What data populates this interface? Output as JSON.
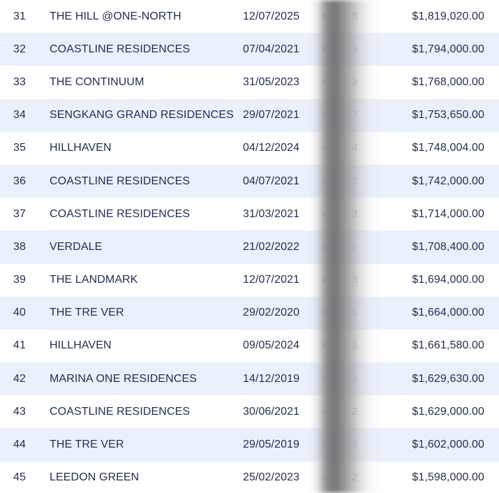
{
  "rows": [
    {
      "rank": "31",
      "name": "THE HILL @ONE-NORTH",
      "date": "12/07/2025",
      "hash": "#",
      "digit": "3",
      "price": "$1,819,020.00"
    },
    {
      "rank": "32",
      "name": "COASTLINE RESIDENCES",
      "date": "07/04/2021",
      "hash": "#",
      "digit": "3",
      "price": "$1,794,000.00"
    },
    {
      "rank": "33",
      "name": "THE CONTINUUM",
      "date": "31/05/2023",
      "hash": "#",
      "digit": "3",
      "price": "$1,768,000.00"
    },
    {
      "rank": "34",
      "name": "SENGKANG GRAND RESIDENCES",
      "date": "29/07/2021",
      "hash": "#",
      "digit": "7",
      "price": "$1,753,650.00"
    },
    {
      "rank": "35",
      "name": "HILLHAVEN",
      "date": "04/12/2024",
      "hash": "#",
      "digit": "4",
      "price": "$1,748,004.00"
    },
    {
      "rank": "36",
      "name": "COASTLINE RESIDENCES",
      "date": "04/07/2021",
      "hash": "#",
      "digit": "2",
      "price": "$1,742,000.00"
    },
    {
      "rank": "37",
      "name": "COASTLINE RESIDENCES",
      "date": "31/03/2021",
      "hash": "#",
      "digit": "3",
      "price": "$1,714,000.00"
    },
    {
      "rank": "38",
      "name": "VERDALE",
      "date": "21/02/2022",
      "hash": "#",
      "digit": "1",
      "price": "$1,708,400.00"
    },
    {
      "rank": "39",
      "name": "THE LANDMARK",
      "date": "12/07/2021",
      "hash": "#",
      "digit": "3",
      "price": "$1,694,000.00"
    },
    {
      "rank": "40",
      "name": "THE TRE VER",
      "date": "29/02/2020",
      "hash": "#",
      "digit": "1",
      "price": "$1,664,000.00"
    },
    {
      "rank": "41",
      "name": "HILLHAVEN",
      "date": "09/05/2024",
      "hash": "#",
      "digit": "3",
      "price": "$1,661,580.00"
    },
    {
      "rank": "42",
      "name": "MARINA ONE RESIDENCES",
      "date": "14/12/2019",
      "hash": "#",
      "digit": "J",
      "price": "$1,629,630.00"
    },
    {
      "rank": "43",
      "name": "COASTLINE RESIDENCES",
      "date": "30/06/2021",
      "hash": "#",
      "digit": "2",
      "price": "$1,629,000.00"
    },
    {
      "rank": "44",
      "name": "THE TRE VER",
      "date": "29/05/2019",
      "hash": "#",
      "digit": "3",
      "price": "$1,602,000.00"
    },
    {
      "rank": "45",
      "name": "LEEDON GREEN",
      "date": "25/02/2023",
      "hash": "#",
      "digit": "2",
      "price": "$1,598,000.00"
    }
  ],
  "colors": {
    "text": "#1f2d4d",
    "row_alt": "#eaf0fc",
    "row_plain": "#ffffff"
  }
}
